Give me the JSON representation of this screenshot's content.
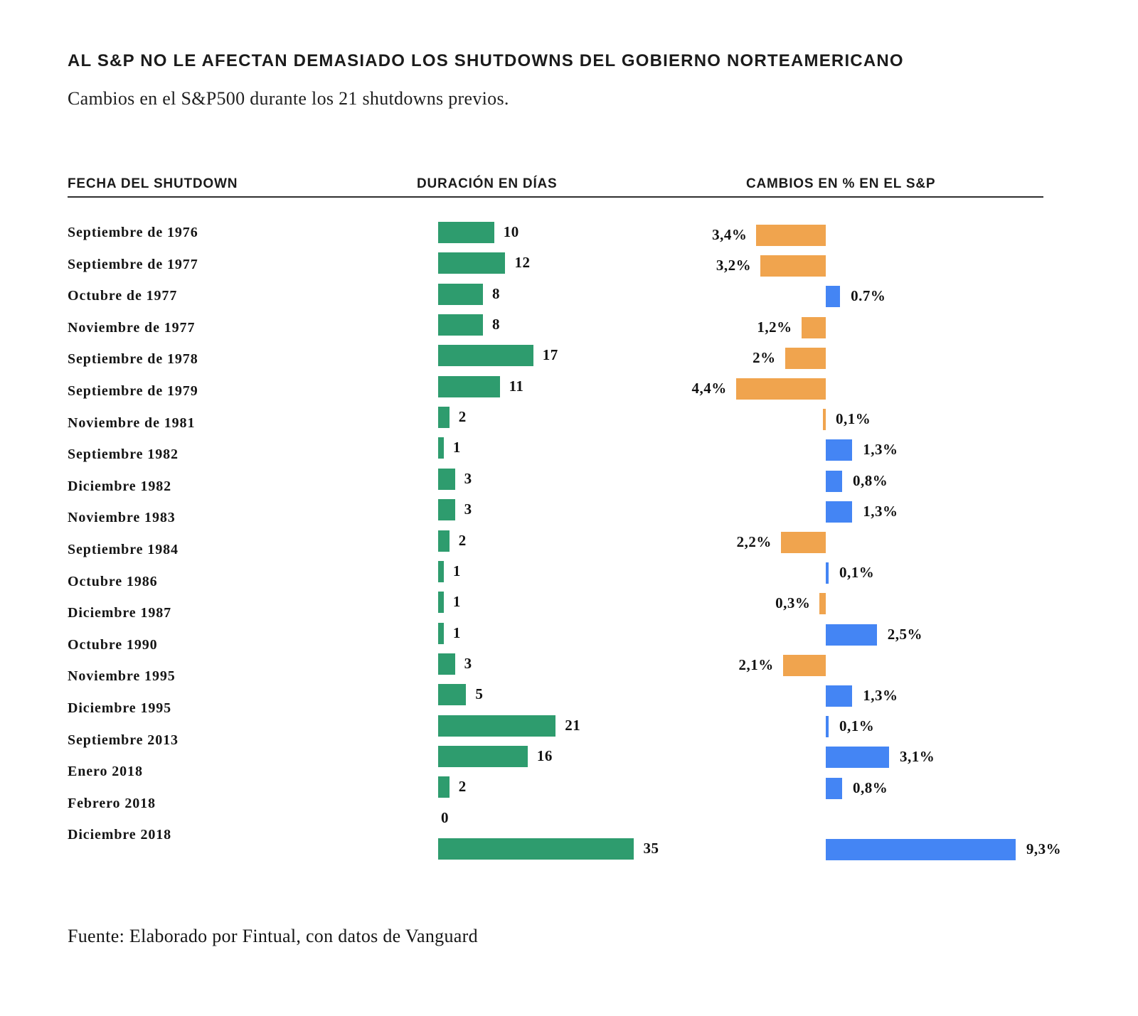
{
  "header": {
    "title": "AL S&P NO LE AFECTAN DEMASIADO LOS SHUTDOWNS DEL GOBIERNO NORTEAMERICANO",
    "subtitle": "Cambios en el S&P500 durante los 21 shutdowns previos."
  },
  "columns": [
    {
      "label": "FECHA DEL SHUTDOWN"
    },
    {
      "label": "DURACIÓN EN DÍAS"
    },
    {
      "label": "CAMBIOS EN % EN EL S&P"
    }
  ],
  "footer": {
    "source": "Fuente: Elaborado por Fintual, con datos de Vanguard"
  },
  "colors": {
    "duration_bar": "#2E9C6E",
    "negative_change_bar": "#F0A44E",
    "positive_change_bar": "#4485F4",
    "text": "#161616",
    "rule": "#2F2F2F"
  },
  "chart_data": {
    "type": "bar",
    "orientation": "horizontal",
    "title": "AL S&P NO LE AFECTAN DEMASIADO LOS SHUTDOWNS DEL GOBIERNO NORTEAMERICANO",
    "subtitle": "Cambios en el S&P500 durante los 21 shutdowns previos.",
    "series": [
      {
        "name": "Duración en días",
        "color": "#2E9C6E"
      },
      {
        "name": "Cambios en % en el S&P",
        "color_negative": "#F0A44E",
        "color_positive": "#4485F4"
      }
    ],
    "duration_range": [
      0,
      35
    ],
    "change_range_pct": [
      -4.4,
      9.3
    ],
    "grid": false,
    "legend": false,
    "rows": [
      {
        "label": "Septiembre de 1976",
        "duration_days": 10,
        "duration_label": "10",
        "change_pct": -3.4,
        "change_label": "3,4%"
      },
      {
        "label": "Septiembre de 1977",
        "duration_days": 12,
        "duration_label": "12",
        "change_pct": -3.2,
        "change_label": "3,2%"
      },
      {
        "label": "Octubre de 1977",
        "duration_days": 8,
        "duration_label": "8",
        "change_pct": 0.7,
        "change_label": "0.7%"
      },
      {
        "label": "Noviembre de 1977",
        "duration_days": 8,
        "duration_label": "8",
        "change_pct": -1.2,
        "change_label": "1,2%"
      },
      {
        "label": "Septiembre de 1978",
        "duration_days": 17,
        "duration_label": "17",
        "change_pct": -2.0,
        "change_label": "2%"
      },
      {
        "label": "Septiembre de 1979",
        "duration_days": 11,
        "duration_label": "11",
        "change_pct": -4.4,
        "change_label": "4,4%"
      },
      {
        "label": "Noviembre de 1981",
        "duration_days": 2,
        "duration_label": "2",
        "change_pct": -0.1,
        "change_label": "0,1%",
        "change_label_side": "right"
      },
      {
        "label": "Septiembre 1982",
        "duration_days": 1,
        "duration_label": "1",
        "change_pct": 1.3,
        "change_label": "1,3%"
      },
      {
        "label": "Diciembre 1982",
        "duration_days": 3,
        "duration_label": "3",
        "change_pct": 0.8,
        "change_label": "0,8%"
      },
      {
        "label": "Noviembre 1983",
        "duration_days": 3,
        "duration_label": "3",
        "change_pct": 1.3,
        "change_label": "1,3%"
      },
      {
        "label": "Septiembre 1984",
        "duration_days": 2,
        "duration_label": "2",
        "change_pct": -2.2,
        "change_label": "2,2%"
      },
      {
        "label": "",
        "duration_days": 1,
        "duration_label": "1",
        "change_pct": 0.1,
        "change_label": "0,1%"
      },
      {
        "label": "Octubre 1986",
        "duration_days": 1,
        "duration_label": "1",
        "change_pct": -0.3,
        "change_label": "0,3%"
      },
      {
        "label": "Diciembre 1987",
        "duration_days": 1,
        "duration_label": "1",
        "change_pct": 2.5,
        "change_label": "2,5%"
      },
      {
        "label": "Octubre 1990",
        "duration_days": 3,
        "duration_label": "3",
        "change_pct": -2.1,
        "change_label": "2,1%"
      },
      {
        "label": "Noviembre 1995",
        "duration_days": 5,
        "duration_label": "5",
        "change_pct": 1.3,
        "change_label": "1,3%"
      },
      {
        "label": "Diciembre 1995",
        "duration_days": 21,
        "duration_label": "21",
        "change_pct": 0.1,
        "change_label": "0,1%"
      },
      {
        "label": "Septiembre 2013",
        "duration_days": 16,
        "duration_label": "16",
        "change_pct": 3.1,
        "change_label": "3,1%"
      },
      {
        "label": "Enero 2018",
        "duration_days": 2,
        "duration_label": "2",
        "change_pct": 0.8,
        "change_label": "0,8%"
      },
      {
        "label": "Febrero 2018",
        "duration_days": 0,
        "duration_label": "0",
        "change_pct": null,
        "change_label": ""
      },
      {
        "label": "Diciembre 2018",
        "duration_days": 35,
        "duration_label": "35",
        "change_pct": 9.3,
        "change_label": "9,3%"
      }
    ]
  }
}
